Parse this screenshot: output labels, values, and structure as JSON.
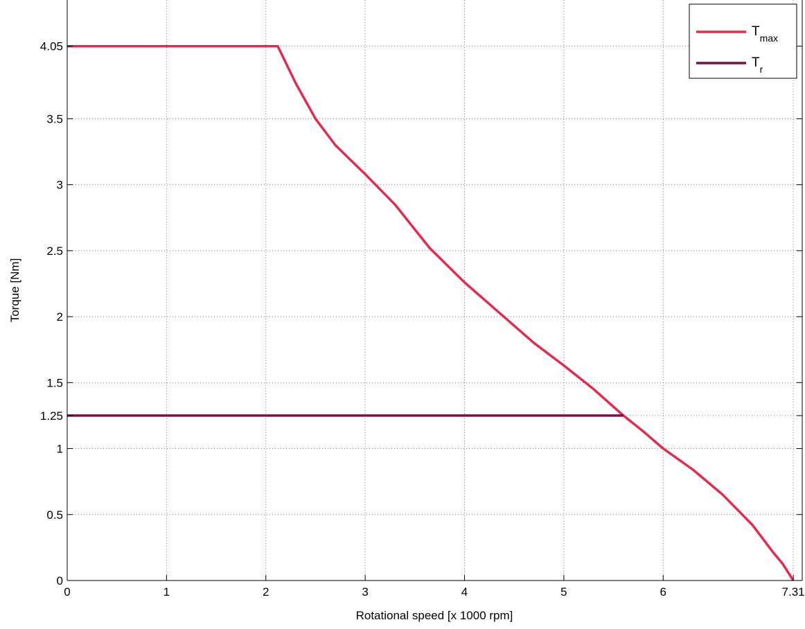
{
  "chart_data": {
    "type": "line",
    "xlabel": "Rotational speed [x 1000 rpm]",
    "ylabel": "Torque [Nm]",
    "xlim": [
      0,
      7.4
    ],
    "ylim": [
      0,
      4.4
    ],
    "grid": true,
    "grid_style": "dotted",
    "legend_position": "top-right",
    "x_ticks": [
      0,
      1,
      2,
      3,
      4,
      5,
      6,
      7.31
    ],
    "x_tick_labels": [
      "0",
      "1",
      "2",
      "3",
      "4",
      "5",
      "6",
      "7.31"
    ],
    "y_ticks": [
      0,
      0.5,
      1,
      1.25,
      1.5,
      2,
      2.5,
      3,
      3.5,
      4.05
    ],
    "y_tick_labels": [
      "0",
      "0.5",
      "1",
      "1.25",
      "1.5",
      "2",
      "2.5",
      "3",
      "3.5",
      "4.05"
    ],
    "series": [
      {
        "name": "T",
        "name_subscript": "max",
        "color": "#e8294e",
        "x": [
          0,
          2.12,
          2.3,
          2.5,
          2.7,
          3.0,
          3.3,
          3.65,
          4.0,
          4.35,
          4.7,
          5.0,
          5.3,
          5.6,
          5.8,
          6.0,
          6.3,
          6.6,
          6.9,
          7.1,
          7.2,
          7.26,
          7.31
        ],
        "y": [
          4.05,
          4.05,
          3.77,
          3.5,
          3.3,
          3.08,
          2.85,
          2.52,
          2.26,
          2.03,
          1.8,
          1.63,
          1.45,
          1.25,
          1.13,
          1.0,
          0.84,
          0.65,
          0.42,
          0.22,
          0.13,
          0.06,
          0.0
        ]
      },
      {
        "name": "T",
        "name_subscript": "r",
        "color": "#7a1048",
        "x": [
          0,
          5.6
        ],
        "y": [
          1.25,
          1.25
        ]
      }
    ]
  }
}
